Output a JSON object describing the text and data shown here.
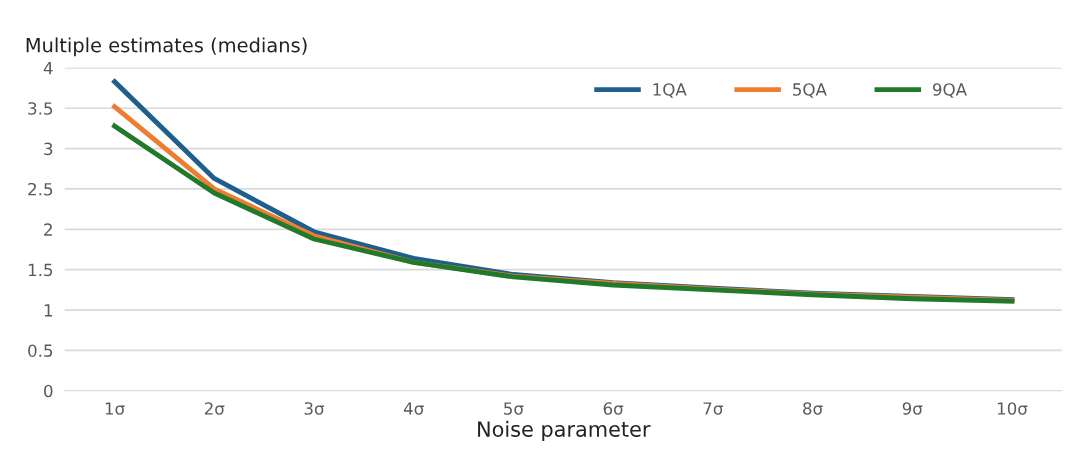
{
  "chart_data": {
    "type": "line",
    "title": "Multiple estimates (medians)",
    "xlabel": "Noise parameter",
    "categories": [
      "1σ",
      "2σ",
      "3σ",
      "4σ",
      "5σ",
      "6σ",
      "7σ",
      "8σ",
      "9σ",
      "10σ"
    ],
    "series": [
      {
        "name": "1QA",
        "color": "#1f5f8b",
        "values": [
          3.83,
          2.63,
          1.97,
          1.64,
          1.44,
          1.34,
          1.27,
          1.21,
          1.17,
          1.13
        ]
      },
      {
        "name": "5QA",
        "color": "#ed7d31",
        "values": [
          3.52,
          2.5,
          1.92,
          1.59,
          1.42,
          1.33,
          1.26,
          1.2,
          1.16,
          1.12
        ]
      },
      {
        "name": "9QA",
        "color": "#217a2b",
        "values": [
          3.28,
          2.45,
          1.88,
          1.59,
          1.41,
          1.31,
          1.25,
          1.19,
          1.14,
          1.11
        ]
      }
    ],
    "ylim": [
      0,
      4
    ],
    "yticks": [
      0,
      0.5,
      1,
      1.5,
      2,
      2.5,
      3,
      3.5,
      4
    ],
    "grid": "y",
    "legend": "top right",
    "marker": "none",
    "line_style": "solid"
  }
}
